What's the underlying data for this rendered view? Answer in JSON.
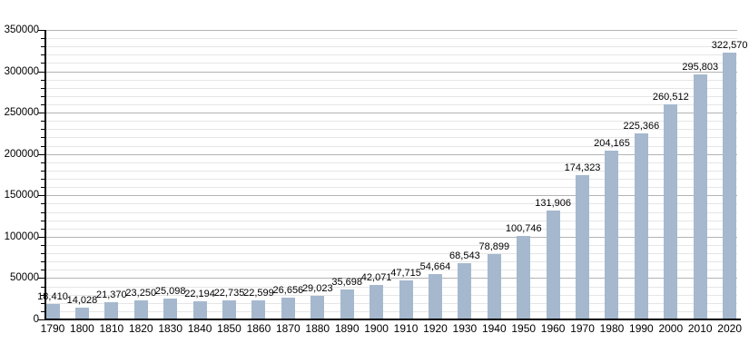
{
  "chart_data": {
    "type": "bar",
    "categories": [
      "1790",
      "1800",
      "1810",
      "1820",
      "1830",
      "1840",
      "1850",
      "1860",
      "1870",
      "1880",
      "1890",
      "1900",
      "1910",
      "1920",
      "1930",
      "1940",
      "1950",
      "1960",
      "1970",
      "1980",
      "1990",
      "2000",
      "2010",
      "2020"
    ],
    "values": [
      18410,
      14028,
      21370,
      23250,
      25098,
      22194,
      22735,
      22599,
      26656,
      29023,
      35698,
      42071,
      47715,
      54664,
      68543,
      78899,
      100746,
      131906,
      174323,
      204165,
      225366,
      260512,
      295803,
      322570
    ],
    "value_labels": [
      "18,410",
      "14,028",
      "21,370",
      "23,250",
      "25,098",
      "22,194",
      "22,735",
      "22,599",
      "26,656",
      "29,023",
      "35,698",
      "42,071",
      "47,715",
      "54,664",
      "68,543",
      "78,899",
      "100,746",
      "131,906",
      "174,323",
      "204,165",
      "225,366",
      "260,512",
      "295,803",
      "322,570"
    ],
    "xlabel": "",
    "ylabel": "",
    "ylim": [
      0,
      350000
    ],
    "y_major_step": 50000,
    "y_minor_step": 10000,
    "y_tick_labels": [
      "0",
      "50000",
      "100000",
      "150000",
      "200000",
      "250000",
      "300000",
      "350000"
    ],
    "grid": true,
    "legend_position": "none",
    "colors": {
      "bar_fill": "#a5b8ce",
      "major_gridline": "#b3b3b3",
      "minor_gridline": "#e6e6e6",
      "axis": "#000000",
      "text": "#000000",
      "background": "#ffffff"
    }
  }
}
